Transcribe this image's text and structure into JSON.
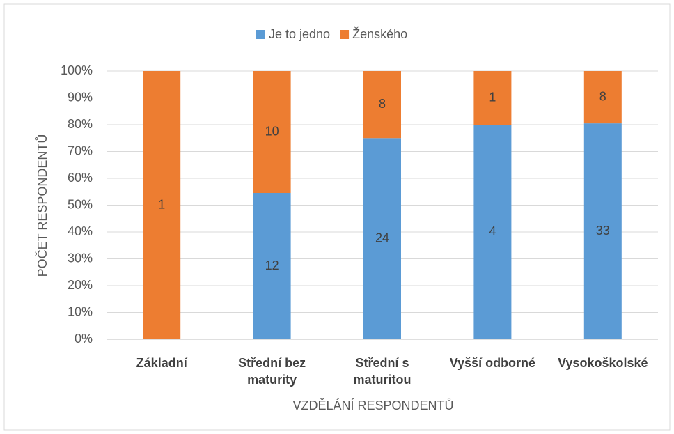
{
  "chart_data": {
    "type": "bar",
    "stacking": "percent",
    "x_label": "VZDĚLÁNÍ RESPONDENTŮ",
    "y_label": "POČET RESPONDENTŮ",
    "categories": [
      "Základní",
      "Střední bez maturity",
      "Střední s maturitou",
      "Vyšší odborné",
      "Vysokoškolské"
    ],
    "series": [
      {
        "name": "Je to jedno",
        "color": "#5b9bd5",
        "values": [
          null,
          12,
          24,
          4,
          33
        ]
      },
      {
        "name": "Ženského",
        "color": "#ed7d31",
        "values": [
          1,
          10,
          8,
          1,
          8
        ]
      }
    ],
    "ylim": [
      0,
      100
    ],
    "yticks": [
      {
        "value": 0,
        "label": "0%"
      },
      {
        "value": 10,
        "label": "10%"
      },
      {
        "value": 20,
        "label": "20%"
      },
      {
        "value": 30,
        "label": "30%"
      },
      {
        "value": 40,
        "label": "40%"
      },
      {
        "value": 50,
        "label": "50%"
      },
      {
        "value": 60,
        "label": "60%"
      },
      {
        "value": 70,
        "label": "70%"
      },
      {
        "value": 80,
        "label": "80%"
      },
      {
        "value": 90,
        "label": "90%"
      },
      {
        "value": 100,
        "label": "100%"
      }
    ],
    "grid": true,
    "legend": "top"
  }
}
